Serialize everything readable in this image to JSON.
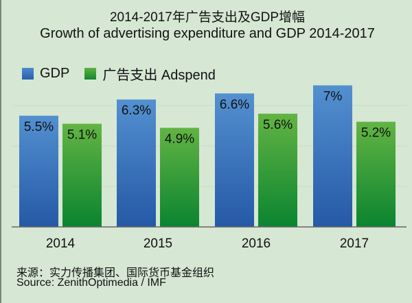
{
  "chart_data": {
    "type": "bar",
    "title": "2014-2017年广告支出及GDP增幅",
    "subtitle": "Growth of advertising expenditure and GDP 2014-2017",
    "categories": [
      "2014",
      "2015",
      "2016",
      "2017"
    ],
    "series": [
      {
        "name": "GDP",
        "values": [
          5.5,
          6.3,
          6.6,
          7
        ],
        "labels": [
          "5.5%",
          "6.3%",
          "6.6%",
          "7%"
        ],
        "color": "#2f6db6"
      },
      {
        "name": "广告支出 Adspend",
        "values": [
          5.1,
          4.9,
          5.6,
          5.2
        ],
        "labels": [
          "5.1%",
          "4.9%",
          "5.6%",
          "5.2%"
        ],
        "color": "#3d9d3a"
      }
    ],
    "ylim": [
      0,
      8
    ],
    "grid": true,
    "legend": "top-left"
  },
  "source": {
    "line1": "来源：实力传播集团、国际货币基金组织",
    "line2": "Source: ZenithOptimedia / IMF"
  }
}
